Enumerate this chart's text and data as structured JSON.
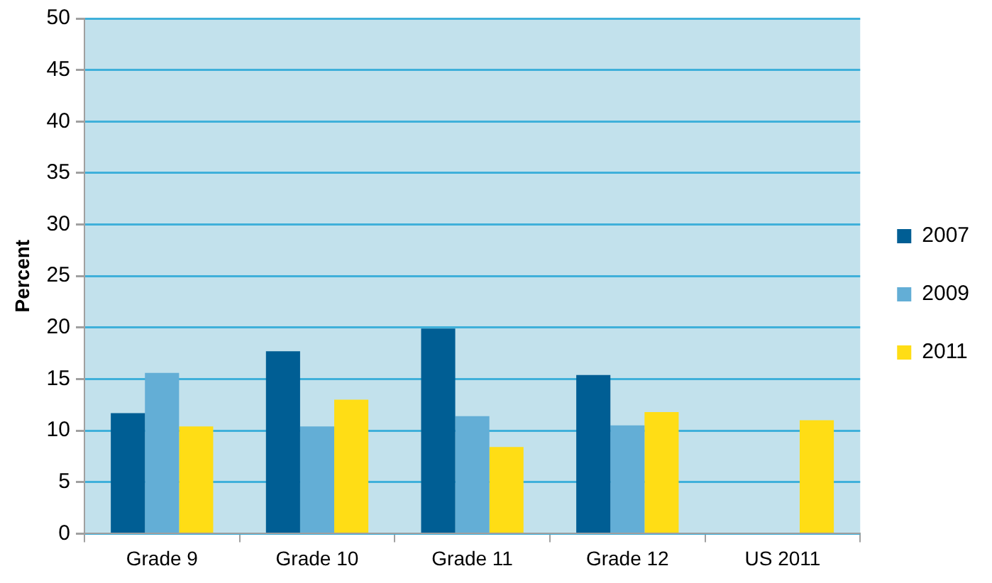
{
  "chart_data": {
    "type": "bar",
    "ylabel": "Percent",
    "categories": [
      "Grade 9",
      "Grade 10",
      "Grade 11",
      "Grade 12",
      "US 2011"
    ],
    "series": [
      {
        "name": "2007",
        "color": "#005e94",
        "values": [
          11.7,
          17.7,
          19.9,
          15.4,
          null
        ]
      },
      {
        "name": "2009",
        "color": "#63aed6",
        "values": [
          15.6,
          10.4,
          11.4,
          10.5,
          null
        ]
      },
      {
        "name": "2011",
        "color": "#ffdd15",
        "values": [
          10.4,
          13.0,
          8.4,
          11.8,
          11.0
        ]
      }
    ],
    "ylim": [
      0,
      50
    ],
    "yticks": [
      0,
      5,
      10,
      15,
      20,
      25,
      30,
      35,
      40,
      45,
      50
    ],
    "grid": "y",
    "legend": "right"
  }
}
